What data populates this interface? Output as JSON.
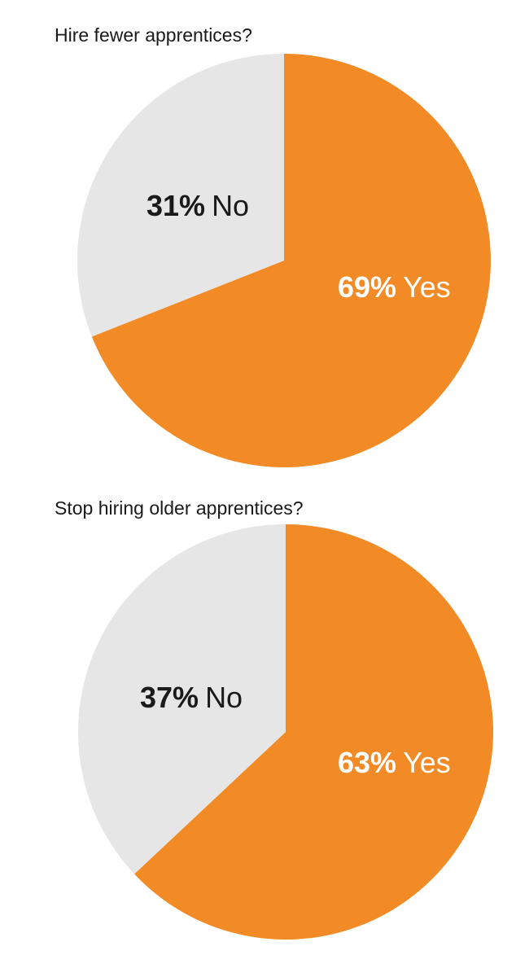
{
  "chart_data": [
    {
      "type": "pie",
      "title": "Hire fewer apprentices?",
      "slices": [
        {
          "label": "Yes",
          "value": 69,
          "display": "69%",
          "color": "#f28a25",
          "text_color": "#ffffff"
        },
        {
          "label": "No",
          "value": 31,
          "display": "31%",
          "color": "#e6e6e6",
          "text_color": "#1a1a1a"
        }
      ]
    },
    {
      "type": "pie",
      "title": "Stop hiring older apprentices?",
      "slices": [
        {
          "label": "Yes",
          "value": 63,
          "display": "63%",
          "color": "#f28a25",
          "text_color": "#ffffff"
        },
        {
          "label": "No",
          "value": 37,
          "display": "37%",
          "color": "#e6e6e6",
          "text_color": "#1a1a1a"
        }
      ]
    }
  ]
}
